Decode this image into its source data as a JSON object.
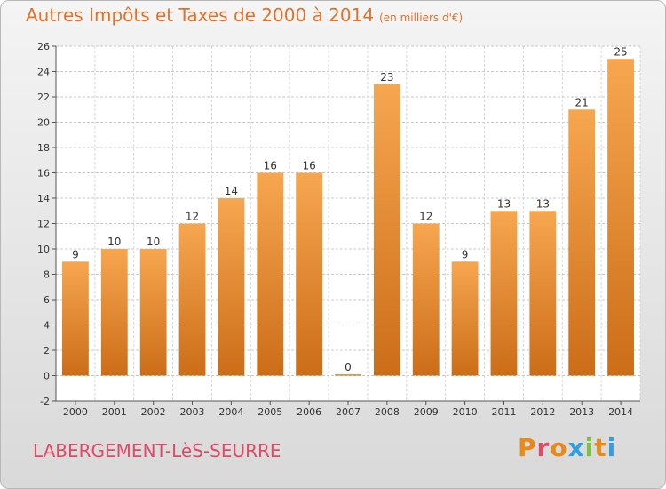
{
  "header": {
    "title": "Autres Impôts et Taxes de 2000 à 2014",
    "unit": "(en milliers d'€)"
  },
  "footer": {
    "commune": "LABERGEMENT-LèS-SEURRE",
    "logo": "Proxiti"
  },
  "colors": {
    "bar_light": "#f7a650",
    "bar_dark": "#cc6d18",
    "title": "#e0722c",
    "commune": "#e04a66"
  },
  "chart_data": {
    "type": "bar",
    "title": "Autres Impôts et Taxes de 2000 à 2014",
    "subtitle": "(en milliers d'€)",
    "categories": [
      "2000",
      "2001",
      "2002",
      "2003",
      "2004",
      "2005",
      "2006",
      "2007",
      "2008",
      "2009",
      "2010",
      "2011",
      "2012",
      "2013",
      "2014"
    ],
    "values": [
      9,
      10,
      10,
      12,
      14,
      16,
      16,
      0,
      23,
      12,
      9,
      13,
      13,
      21,
      25
    ],
    "ylim": [
      -2,
      26
    ],
    "yticks": [
      -2,
      0,
      2,
      4,
      6,
      8,
      10,
      12,
      14,
      16,
      18,
      20,
      22,
      24,
      26
    ],
    "grid": true,
    "data_labels": true
  }
}
